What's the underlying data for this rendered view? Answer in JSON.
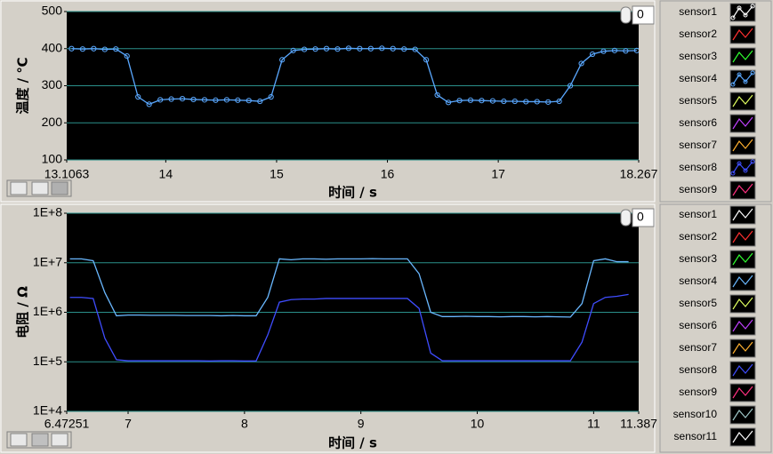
{
  "chart_data": [
    {
      "type": "line",
      "y_label": "温度 / ℃",
      "x_label": "时间 / s",
      "plot_index": 0,
      "xlim": [
        13.1063,
        18.267
      ],
      "xticks": [
        13.1063,
        14,
        15,
        16,
        17,
        18.267
      ],
      "ylim": [
        100,
        500
      ],
      "yticks": [
        100,
        200,
        300,
        400,
        500
      ],
      "grid": "y",
      "grid_color": "#2a8f8a",
      "x": [
        13.15,
        13.25,
        13.35,
        13.45,
        13.55,
        13.65,
        13.75,
        13.85,
        13.95,
        14.05,
        14.15,
        14.25,
        14.35,
        14.45,
        14.55,
        14.65,
        14.75,
        14.85,
        14.95,
        15.05,
        15.15,
        15.25,
        15.35,
        15.45,
        15.55,
        15.65,
        15.75,
        15.85,
        15.95,
        16.05,
        16.15,
        16.25,
        16.35,
        16.45,
        16.55,
        16.65,
        16.75,
        16.85,
        16.95,
        17.05,
        17.15,
        17.25,
        17.35,
        17.45,
        17.55,
        17.65,
        17.75,
        17.85,
        17.95,
        18.05,
        18.15,
        18.25
      ],
      "series": [
        {
          "name": "sensor1",
          "color": "#ffffff",
          "marker": "circle"
        },
        {
          "name": "sensor2",
          "color": "#ff3030"
        },
        {
          "name": "sensor3",
          "color": "#30ff30"
        },
        {
          "name": "sensor4",
          "color": "#5aa8ff",
          "marker": "circle",
          "values": [
            400,
            399,
            400,
            398,
            399,
            380,
            270,
            250,
            262,
            264,
            265,
            263,
            262,
            261,
            262,
            261,
            260,
            258,
            270,
            370,
            395,
            398,
            399,
            400,
            399,
            401,
            400,
            400,
            401,
            400,
            399,
            398,
            370,
            275,
            255,
            260,
            261,
            260,
            259,
            258,
            258,
            257,
            257,
            256,
            258,
            300,
            360,
            385,
            393,
            395,
            394,
            395
          ]
        },
        {
          "name": "sensor5",
          "color": "#e0ff60"
        },
        {
          "name": "sensor6",
          "color": "#c040ff"
        },
        {
          "name": "sensor7",
          "color": "#ffb030"
        },
        {
          "name": "sensor8",
          "color": "#4050ff",
          "marker": "circle"
        },
        {
          "name": "sensor9",
          "color": "#ff3080"
        }
      ]
    },
    {
      "type": "line",
      "y_label": "电阻 / Ω",
      "x_label": "时间 / s",
      "plot_index": 0,
      "xlim": [
        6.47251,
        11.387
      ],
      "xticks": [
        6.47251,
        7,
        8,
        9,
        10,
        11,
        11.387
      ],
      "ylim": [
        10000,
        100000000
      ],
      "yscale": "log",
      "yticks": [
        {
          "value": 10000,
          "label": "1E+4"
        },
        {
          "value": 100000,
          "label": "1E+5"
        },
        {
          "value": 1000000,
          "label": "1E+6"
        },
        {
          "value": 10000000,
          "label": "1E+7"
        },
        {
          "value": 100000000,
          "label": "1E+8"
        }
      ],
      "grid": "y",
      "grid_color": "#2a8f8a",
      "x": [
        6.5,
        6.6,
        6.7,
        6.8,
        6.9,
        7.0,
        7.1,
        7.2,
        7.3,
        7.4,
        7.5,
        7.6,
        7.7,
        7.8,
        7.9,
        8.0,
        8.1,
        8.2,
        8.3,
        8.4,
        8.5,
        8.6,
        8.7,
        8.8,
        8.9,
        9.0,
        9.1,
        9.2,
        9.3,
        9.4,
        9.5,
        9.6,
        9.7,
        9.8,
        9.9,
        10.0,
        10.1,
        10.2,
        10.3,
        10.4,
        10.5,
        10.6,
        10.7,
        10.8,
        10.9,
        11.0,
        11.1,
        11.2,
        11.3
      ],
      "series": [
        {
          "name": "sensor1",
          "color": "#ffffff"
        },
        {
          "name": "sensor2",
          "color": "#ff3030"
        },
        {
          "name": "sensor3",
          "color": "#30ff30"
        },
        {
          "name": "sensor4",
          "color": "#6ab8ff",
          "values": [
            12000000,
            12000000,
            11000000,
            2500000,
            850000,
            880000,
            880000,
            870000,
            870000,
            870000,
            860000,
            860000,
            860000,
            850000,
            860000,
            850000,
            850000,
            2000000,
            12000000,
            11500000,
            12000000,
            12000000,
            11800000,
            12000000,
            12000000,
            12000000,
            12100000,
            12000000,
            12000000,
            12000000,
            6000000,
            1000000,
            820000,
            820000,
            830000,
            820000,
            820000,
            810000,
            820000,
            820000,
            810000,
            820000,
            810000,
            800000,
            1500000,
            11000000,
            12000000,
            10500000,
            10500000
          ]
        },
        {
          "name": "sensor5",
          "color": "#e0ff60"
        },
        {
          "name": "sensor6",
          "color": "#c040ff"
        },
        {
          "name": "sensor7",
          "color": "#ffb030"
        },
        {
          "name": "sensor8",
          "color": "#3f4dff",
          "values": [
            2000000,
            2000000,
            1900000,
            300000,
            110000,
            105000,
            105000,
            105000,
            105000,
            105000,
            105000,
            105000,
            104000,
            105000,
            105000,
            104000,
            104000,
            350000,
            1600000,
            1800000,
            1850000,
            1850000,
            1900000,
            1900000,
            1900000,
            1900000,
            1900000,
            1900000,
            1900000,
            1900000,
            1200000,
            150000,
            105000,
            105000,
            105000,
            105000,
            105000,
            105000,
            105000,
            105000,
            105000,
            105000,
            105000,
            105000,
            250000,
            1500000,
            2000000,
            2100000,
            2300000
          ]
        },
        {
          "name": "sensor9",
          "color": "#ff3080"
        },
        {
          "name": "sensor10",
          "color": "#a0c8c8"
        },
        {
          "name": "sensor11",
          "color": "#ffffff"
        }
      ]
    }
  ]
}
